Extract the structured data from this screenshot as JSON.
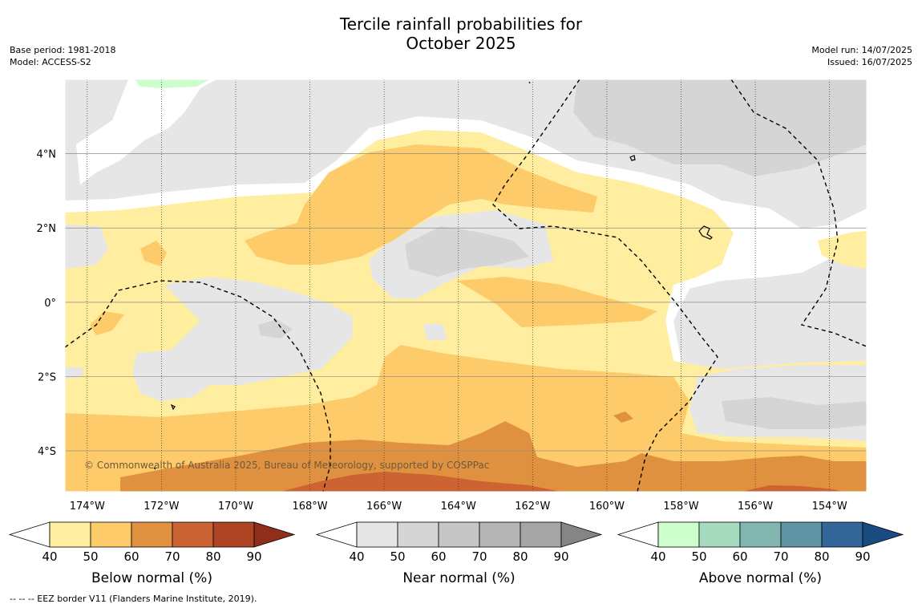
{
  "title_line1": "Tercile rainfall probabilities for",
  "title_line2": "October 2025",
  "base_period": "Base period: 1981-2018",
  "model": "Model: ACCESS-S2",
  "model_run": "Model run: 14/07/2025",
  "issued": "Issued: 16/07/2025",
  "copyright": "© Commonwealth of Australia 2025, Bureau of Meteorology, supported by COSPPac",
  "footnote": "--  --  -- EEZ border V11 (Flanders Marine Institute, 2019).",
  "map": {
    "lon_ticks": [
      {
        "value": -174,
        "label": "174°W"
      },
      {
        "value": -172,
        "label": "172°W"
      },
      {
        "value": -170,
        "label": "170°W"
      },
      {
        "value": -168,
        "label": "168°W"
      },
      {
        "value": -166,
        "label": "166°W"
      },
      {
        "value": -164,
        "label": "164°W"
      },
      {
        "value": -162,
        "label": "162°W"
      },
      {
        "value": -160,
        "label": "160°W"
      },
      {
        "value": -158,
        "label": "158°W"
      },
      {
        "value": -156,
        "label": "156°W"
      },
      {
        "value": -154,
        "label": "154°W"
      }
    ],
    "lat_ticks": [
      {
        "value": 4,
        "label": "4°N"
      },
      {
        "value": 2,
        "label": "2°N"
      },
      {
        "value": 0,
        "label": "0°"
      },
      {
        "value": -2,
        "label": "2°S"
      },
      {
        "value": -4,
        "label": "4°S"
      }
    ],
    "lon_range": [
      -174.6,
      -153.0
    ],
    "lat_range": [
      -5.1,
      6.0
    ]
  },
  "colorbars": [
    {
      "name": "below",
      "title": "Below normal (%)",
      "ticks": [
        "40",
        "50",
        "60",
        "70",
        "80",
        "90"
      ],
      "colors": [
        "#ffeda0",
        "#fdcb6a",
        "#e0913f",
        "#cc6332",
        "#ad4525",
        "#8f2f1a"
      ]
    },
    {
      "name": "near",
      "title": "Near normal (%)",
      "ticks": [
        "40",
        "50",
        "60",
        "70",
        "80",
        "90"
      ],
      "colors": [
        "#e6e6e6",
        "#d5d5d5",
        "#c6c6c6",
        "#b5b5b5",
        "#a5a5a5",
        "#858585"
      ]
    },
    {
      "name": "above",
      "title": "Above normal (%)",
      "ticks": [
        "40",
        "50",
        "60",
        "70",
        "80",
        "90"
      ],
      "colors": [
        "#ccffcc",
        "#a6dbc0",
        "#82b7b1",
        "#5e93a3",
        "#336699",
        "#184b80"
      ]
    }
  ]
}
